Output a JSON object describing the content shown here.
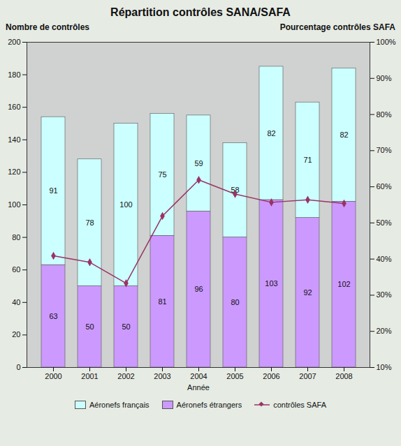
{
  "chart_data": {
    "type": "bar",
    "title": "Répartition contrôles SANA/SAFA",
    "x_label": "Année",
    "y_label": "Nombre de contrôles",
    "y2_label": "Pourcentage contrôles SAFA",
    "categories": [
      "2000",
      "2001",
      "2002",
      "2003",
      "2004",
      "2005",
      "2006",
      "2007",
      "2008"
    ],
    "series": [
      {
        "name": "Aéronefs français",
        "color": "#ccffff",
        "data_labels": true,
        "values": [
          91,
          78,
          100,
          75,
          59,
          58,
          82,
          71,
          82
        ]
      },
      {
        "name": "Aéronefs étrangers",
        "color": "#cc99ff",
        "data_labels": true,
        "values": [
          63,
          50,
          50,
          81,
          96,
          80,
          103,
          92,
          102
        ]
      },
      {
        "name": "contrôles SAFA",
        "type": "line",
        "axis": "y2",
        "color": "#993366",
        "marker": "diamond",
        "line_style": "solid",
        "data_labels": false,
        "values": [
          40.9,
          39.1,
          33.3,
          51.9,
          61.9,
          58.0,
          55.7,
          56.4,
          55.4
        ]
      }
    ],
    "ylim": [
      0,
      200
    ],
    "yticks": [
      0,
      20,
      40,
      60,
      80,
      100,
      120,
      140,
      160,
      180,
      200
    ],
    "y2lim": [
      10,
      100
    ],
    "y2ticks": [
      {
        "value": 10,
        "label": "10%"
      },
      {
        "value": 20,
        "label": "20%"
      },
      {
        "value": 30,
        "label": "30%"
      },
      {
        "value": 40,
        "label": "40%"
      },
      {
        "value": 50,
        "label": "50%"
      },
      {
        "value": 60,
        "label": "60%"
      },
      {
        "value": 70,
        "label": "70%"
      },
      {
        "value": 80,
        "label": "80%"
      },
      {
        "value": 90,
        "label": "90%"
      },
      {
        "value": 100,
        "label": "100%"
      }
    ],
    "stacked": true,
    "grid": false,
    "legend": "bottom"
  }
}
